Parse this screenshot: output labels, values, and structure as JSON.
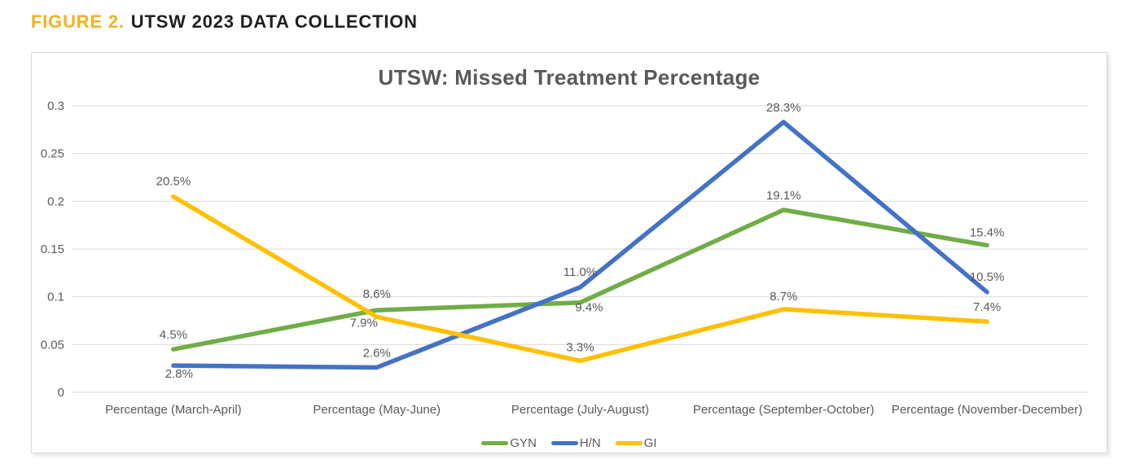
{
  "figure": {
    "label": "FIGURE 2.",
    "title": "UTSW 2023 DATA COLLECTION"
  },
  "colors": {
    "accent_gold": "#F3B01F",
    "heading_text": "#221E1F",
    "axis_text": "#595959",
    "grid_line": "#D9D9D9",
    "chart_border": "#D9D9D9",
    "series_gyn": "#70AD47",
    "series_hn": "#4472C4",
    "series_gi": "#FFC000"
  },
  "chart_data": {
    "type": "line",
    "title": "UTSW: Missed Treatment Percentage",
    "categories": [
      "Percentage (March-April)",
      "Percentage (May-June)",
      "Percentage (July-August)",
      "Percentage (September-October)",
      "Percentage (November-December)"
    ],
    "series": [
      {
        "name": "GYN",
        "color": "#70AD47",
        "values": [
          0.045,
          0.086,
          0.094,
          0.191,
          0.154
        ],
        "point_labels": [
          "4.5%",
          "8.6%",
          "9.4%",
          "19.1%",
          "15.4%"
        ],
        "label_offsets": [
          [
            0,
            -18
          ],
          [
            0,
            -20
          ],
          [
            11,
            6
          ],
          [
            0,
            -18
          ],
          [
            0,
            -16
          ]
        ]
      },
      {
        "name": "H/N",
        "color": "#4472C4",
        "values": [
          0.028,
          0.026,
          0.11,
          0.283,
          0.105
        ],
        "point_labels": [
          "2.8%",
          "2.6%",
          "11.0%",
          "28.3%",
          "10.5%"
        ],
        "label_offsets": [
          [
            7,
            10
          ],
          [
            0,
            -18
          ],
          [
            0,
            -19
          ],
          [
            0,
            -18
          ],
          [
            0,
            -19
          ]
        ]
      },
      {
        "name": "GI",
        "color": "#FFC000",
        "values": [
          0.205,
          0.079,
          0.033,
          0.087,
          0.074
        ],
        "point_labels": [
          "20.5%",
          "7.9%",
          "3.3%",
          "8.7%",
          "7.4%"
        ],
        "label_offsets": [
          [
            0,
            -19
          ],
          [
            -16,
            7
          ],
          [
            0,
            -17
          ],
          [
            0,
            -16
          ],
          [
            0,
            -18
          ]
        ]
      }
    ],
    "xlabel": "",
    "ylabel": "",
    "ylim": [
      0,
      0.3
    ],
    "ytick_step": 0.05,
    "ytick_labels": [
      "0",
      "0.05",
      "0.1",
      "0.15",
      "0.2",
      "0.25",
      "0.3"
    ],
    "grid": true,
    "legend_position": "bottom"
  }
}
